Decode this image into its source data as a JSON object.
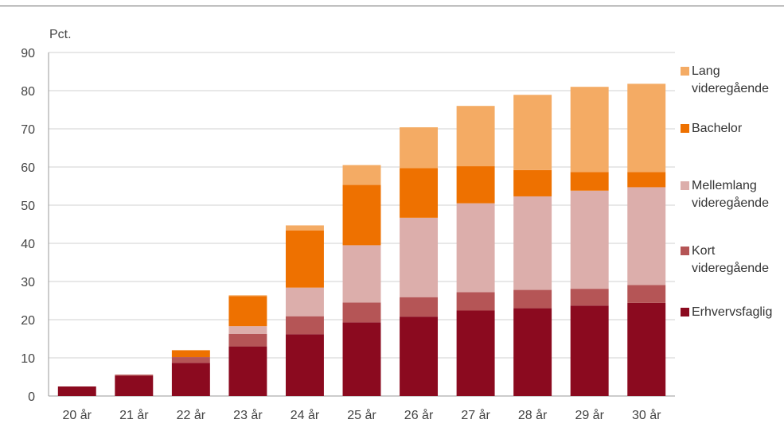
{
  "chart_data": {
    "type": "bar",
    "stacked": true,
    "ylabel": "Pct.",
    "ylim": [
      0,
      90
    ],
    "yticks": [
      0,
      10,
      20,
      30,
      40,
      50,
      60,
      70,
      80,
      90
    ],
    "grid": true,
    "legend_position": "right",
    "categories": [
      "20 år",
      "21 år",
      "22 år",
      "23 år",
      "24 år",
      "25 år",
      "26 år",
      "27 år",
      "28 år",
      "29 år",
      "30 år"
    ],
    "series": [
      {
        "name": "Erhvervsfaglig",
        "color": "#8b0a1f",
        "values": [
          2.5,
          5.3,
          8.7,
          13.0,
          16.2,
          19.3,
          20.8,
          22.4,
          23.0,
          23.7,
          24.4
        ]
      },
      {
        "name": "Kort videregående",
        "color": "#b55556",
        "values": [
          0,
          0.3,
          1.5,
          3.3,
          4.7,
          5.2,
          5.1,
          4.8,
          4.8,
          4.4,
          4.7
        ]
      },
      {
        "name": "Mellemlang videregående",
        "color": "#dcaeab",
        "values": [
          0,
          0,
          0,
          2.0,
          7.5,
          15.0,
          20.8,
          23.3,
          24.5,
          25.7,
          25.6
        ]
      },
      {
        "name": "Bachelor",
        "color": "#ee7100",
        "values": [
          0,
          0,
          1.8,
          7.9,
          15.0,
          15.8,
          13.0,
          9.7,
          6.9,
          4.9,
          4.0
        ]
      },
      {
        "name": "Lang videregående",
        "color": "#f4ab64",
        "values": [
          0,
          0,
          0,
          0.2,
          1.3,
          5.2,
          10.7,
          15.8,
          19.7,
          22.3,
          23.1
        ]
      }
    ],
    "legend": [
      {
        "series": "Lang videregående",
        "lines": [
          "Lang",
          "videregående"
        ]
      },
      {
        "series": "Bachelor",
        "lines": [
          "Bachelor"
        ]
      },
      {
        "series": "Mellemlang videregående",
        "lines": [
          "Mellemlang",
          "videregående"
        ]
      },
      {
        "series": "Kort videregående",
        "lines": [
          "Kort",
          "videregående"
        ]
      },
      {
        "series": "Erhvervsfaglig",
        "lines": [
          "Erhvervsfaglig"
        ]
      }
    ]
  }
}
